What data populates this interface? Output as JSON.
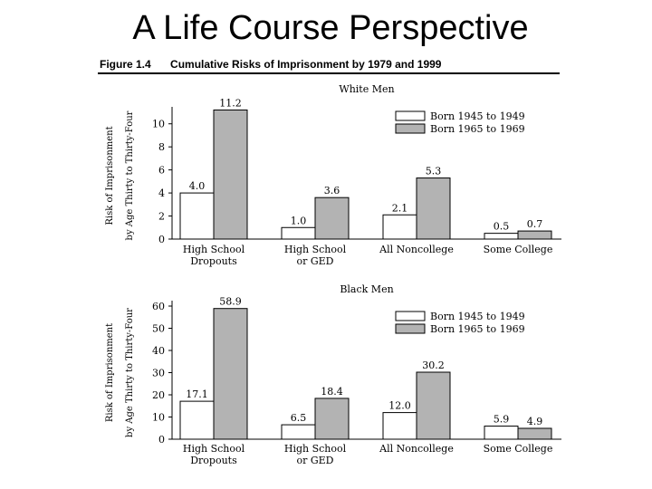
{
  "slide": {
    "title": "A Life Course Perspective"
  },
  "figure": {
    "number": "Figure 1.4",
    "title": "Cumulative Risks of Imprisonment by 1979 and 1999"
  },
  "chart_data": [
    {
      "type": "bar",
      "title": "White Men",
      "ylabel": "Risk of Imprisonment by Age Thirty to Thirty-Four",
      "ylim": [
        0,
        11
      ],
      "yticks": [
        0,
        2,
        4,
        6,
        8,
        10
      ],
      "categories": [
        "High School Dropouts",
        "High School or GED",
        "All Noncollege",
        "Some College"
      ],
      "series": [
        {
          "name": "Born 1945 to 1949",
          "color": "#ffffff",
          "values": [
            4.0,
            1.0,
            2.1,
            0.5
          ],
          "labels": [
            "4.0",
            "1.0",
            "2.1",
            "0.5"
          ]
        },
        {
          "name": "Born 1965 to 1969",
          "color": "#b3b3b3",
          "values": [
            11.2,
            3.6,
            5.3,
            0.7
          ],
          "labels": [
            "11.2",
            "3.6",
            "5.3",
            "0.7"
          ]
        }
      ],
      "legend": "top-right"
    },
    {
      "type": "bar",
      "title": "Black Men",
      "ylabel": "Risk of Imprisonment by Age Thirty to Thirty-Four",
      "ylim": [
        0,
        60
      ],
      "yticks": [
        0,
        10,
        20,
        30,
        40,
        50,
        60
      ],
      "categories": [
        "High School Dropouts",
        "High School or GED",
        "All Noncollege",
        "Some College"
      ],
      "series": [
        {
          "name": "Born 1945 to 1949",
          "color": "#ffffff",
          "values": [
            17.1,
            6.5,
            12.0,
            5.9
          ],
          "labels": [
            "17.1",
            "6.5",
            "12.0",
            "5.9"
          ]
        },
        {
          "name": "Born 1965 to 1969",
          "color": "#b3b3b3",
          "values": [
            58.9,
            18.4,
            30.2,
            4.9
          ],
          "labels": [
            "58.9",
            "18.4",
            "30.2",
            "4.9"
          ]
        }
      ],
      "legend": "top-right"
    }
  ]
}
